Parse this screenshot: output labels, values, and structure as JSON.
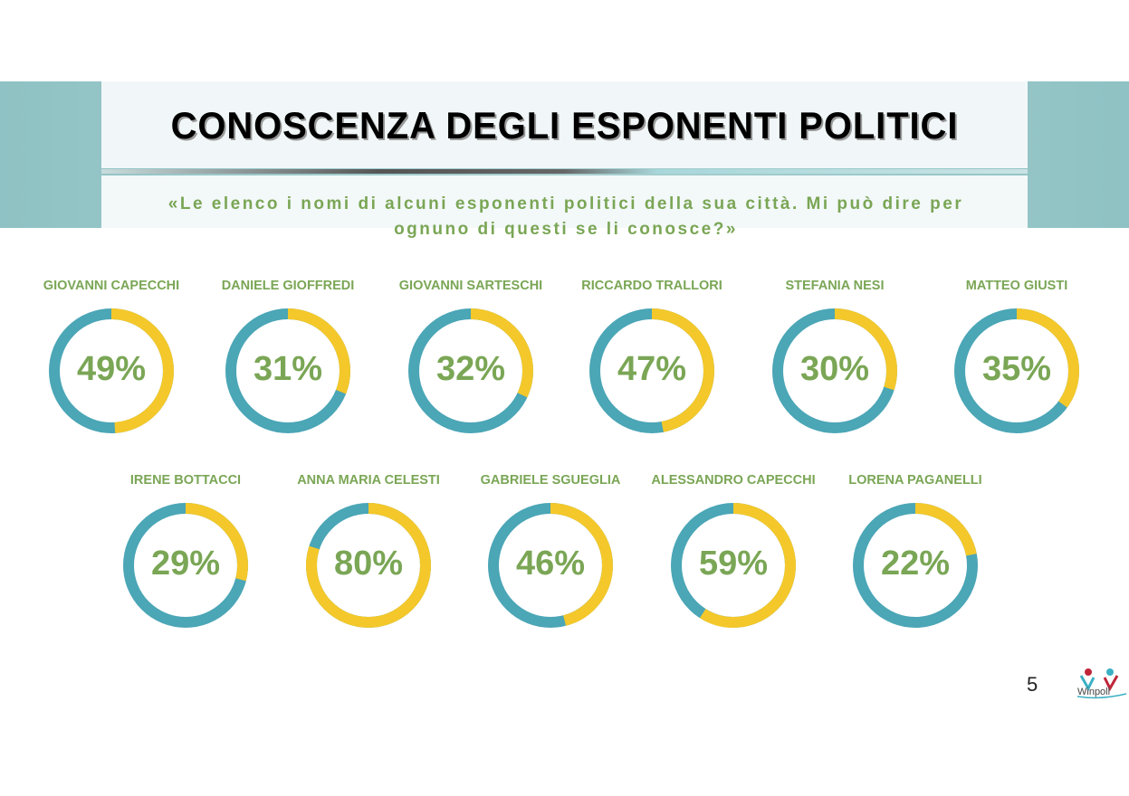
{
  "header": {
    "title": "CONOSCENZA DEGLI ESPONENTI POLITICI",
    "subtitle": "«Le elenco i nomi di alcuni esponenti politici della sua città. Mi può dire per ognuno di questi se li conosce?»"
  },
  "footer": {
    "page_number": "5",
    "logo_text": "Winpoll"
  },
  "colors": {
    "known": "#f4c82a",
    "unknown": "#4ba6b6",
    "text": "#7aa655"
  },
  "chart_data": {
    "type": "pie",
    "title": "CONOSCENZA DEGLI ESPONENTI POLITICI",
    "categories": [
      "GIOVANNI CAPECCHI",
      "DANIELE GIOFFREDI",
      "GIOVANNI SARTESCHI",
      "RICCARDO TRALLORI",
      "STEFANIA NESI",
      "MATTEO GIUSTI",
      "IRENE BOTTACCI",
      "ANNA MARIA CELESTI",
      "GABRIELE SGUEGLIA",
      "ALESSANDRO CAPECCHI",
      "LORENA PAGANELLI"
    ],
    "values": [
      49,
      31,
      32,
      47,
      30,
      35,
      29,
      80,
      46,
      59,
      22
    ],
    "labels": [
      "49%",
      "31%",
      "32%",
      "47%",
      "30%",
      "35%",
      "29%",
      "80%",
      "46%",
      "59%",
      "22%"
    ]
  }
}
